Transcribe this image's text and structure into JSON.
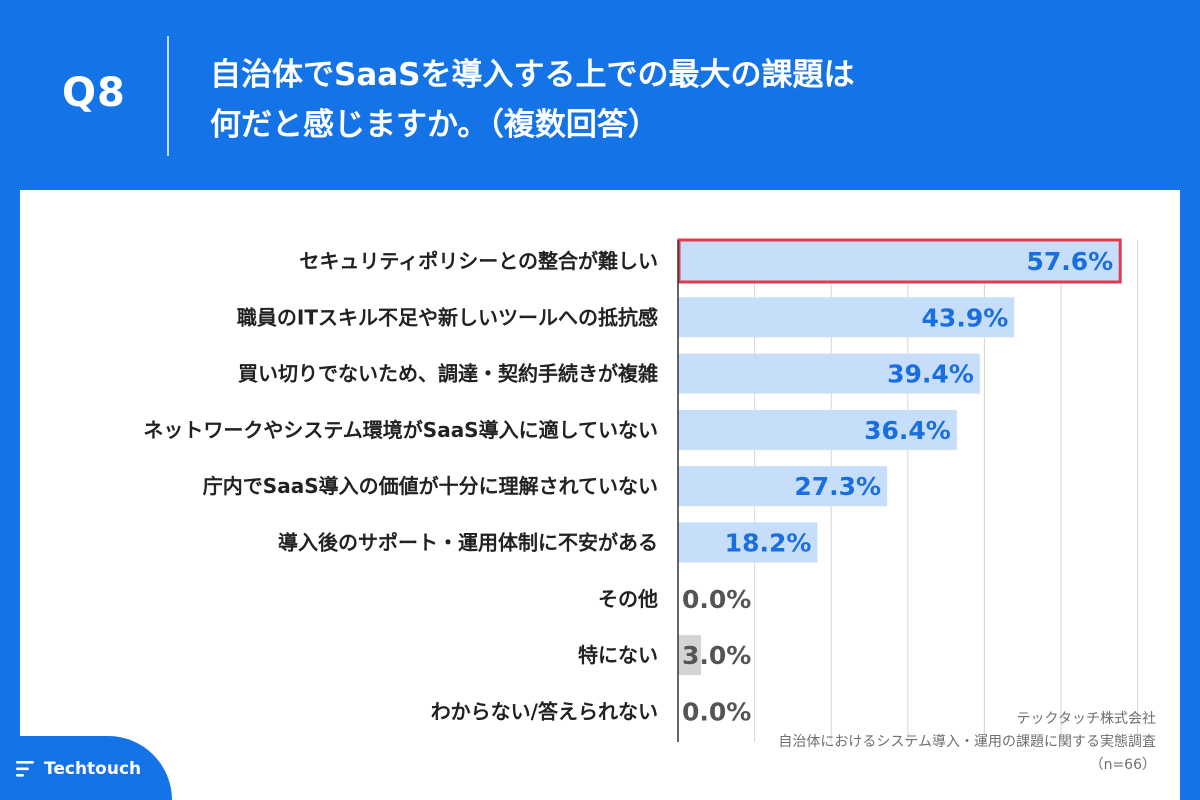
{
  "header": {
    "question_number": "Q8",
    "title_line1": "自治体でSaaSを導入する上での最大の課題は",
    "title_line2": "何だと感じますか。（複数回答）"
  },
  "chart_data": {
    "type": "bar",
    "orientation": "horizontal",
    "unit": "%",
    "xlim": [
      0,
      70
    ],
    "grid": true,
    "highlighted_category_index": 0,
    "categories": [
      "セキュリティポリシーとの整合が難しい",
      "職員のITスキル不足や新しいツールへの抵抗感",
      "買い切りでないため、調達・契約手続きが複雑",
      "ネットワークやシステム環境がSaaS導入に適していない",
      "庁内でSaaS導入の価値が十分に理解されていない",
      "導入後のサポート・運用体制に不安がある",
      "その他",
      "特にない",
      "わからない/答えられない"
    ],
    "values": [
      57.6,
      43.9,
      39.4,
      36.4,
      27.3,
      18.2,
      0.0,
      3.0,
      0.0
    ],
    "value_labels": [
      "57.6%",
      "43.9%",
      "39.4%",
      "36.4%",
      "27.3%",
      "18.2%",
      "0.0%",
      "3.0%",
      "0.0%"
    ],
    "colors": {
      "bar_main": "#c6defa",
      "bar_other": "#d4d4d4",
      "label_main": "#1a6fe0",
      "label_other": "#555555",
      "highlight_border": "#e03c4f",
      "grid": "#d6d6d6",
      "axis": "#333333"
    }
  },
  "source": {
    "company": "テックタッチ株式会社",
    "survey": "自治体におけるシステム導入・運用の課題に関する実態調査",
    "sample": "（n=66）"
  },
  "brand": {
    "logo_text": "Techtouch",
    "background": "#1473e6"
  }
}
